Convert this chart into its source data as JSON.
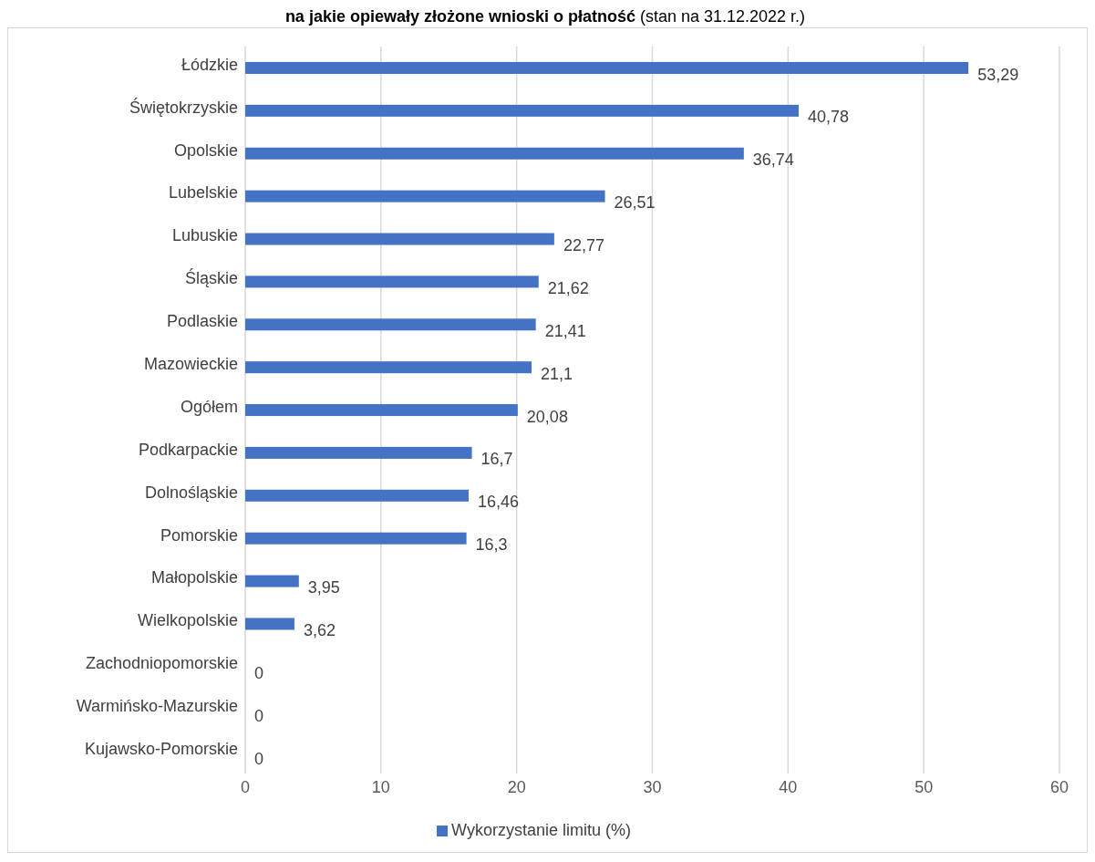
{
  "chart_data": {
    "type": "bar",
    "orientation": "horizontal",
    "title": "na jakie opiewały złożone wnioski o płatność",
    "subtitle": "(stan na 31.12.2022 r.)",
    "categories": [
      "Łódzkie",
      "Świętokrzyskie",
      "Opolskie",
      "Lubelskie",
      "Lubuskie",
      "Śląskie",
      "Podlaskie",
      "Mazowieckie",
      "Ogółem",
      "Podkarpackie",
      "Dolnośląskie",
      "Pomorskie",
      "Małopolskie",
      "Wielkopolskie",
      "Zachodniopomorskie",
      "Warmińsko-Mazurskie",
      "Kujawsko-Pomorskie"
    ],
    "series": [
      {
        "name": "Wykorzystanie limitu (%)",
        "color": "#4472c4",
        "values": [
          53.29,
          40.78,
          36.74,
          26.51,
          22.77,
          21.62,
          21.41,
          21.1,
          20.08,
          16.7,
          16.46,
          16.3,
          3.95,
          3.62,
          0,
          0,
          0
        ],
        "value_labels": [
          "53,29",
          "40,78",
          "36,74",
          "26,51",
          "22,77",
          "21,62",
          "21,41",
          "21,1",
          "20,08",
          "16,7",
          "16,46",
          "16,3",
          "3,95",
          "3,62",
          "0",
          "0",
          "0"
        ]
      }
    ],
    "xlim": [
      0,
      60
    ],
    "xticks": [
      0,
      10,
      20,
      30,
      40,
      50,
      60
    ],
    "grid": "x",
    "legend": "bottom"
  }
}
